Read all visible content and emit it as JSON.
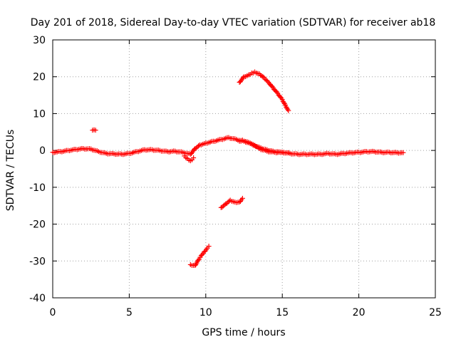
{
  "chart_data": {
    "type": "scatter",
    "title": "Day 201 of 2018, Sidereal Day-to-day VTEC variation (SDTVAR) for receiver ab18",
    "xlabel": "GPS time / hours",
    "ylabel": "SDTVAR / TECUs",
    "xlim": [
      0,
      25
    ],
    "ylim": [
      -40,
      30
    ],
    "xticks": [
      0,
      5,
      10,
      15,
      20,
      25
    ],
    "yticks": [
      -40,
      -30,
      -20,
      -10,
      0,
      10,
      20,
      30
    ],
    "xtick_labels": [
      "0",
      "5",
      "10",
      "15",
      "20",
      "25"
    ],
    "ytick_labels": [
      "-40",
      "-30",
      "-20",
      "-10",
      "0",
      "10",
      "20",
      "30"
    ],
    "grid": true,
    "marker": "plus",
    "color": "#ff0000",
    "series": [
      {
        "name": "baseline",
        "x": [
          0.0,
          0.5,
          1.0,
          1.5,
          2.0,
          2.5,
          3.0,
          3.5,
          4.0,
          4.5,
          5.0,
          5.5,
          6.0,
          6.5,
          7.0,
          7.5,
          8.0,
          8.5,
          9.0,
          9.3,
          9.6,
          10.0,
          10.5,
          11.0,
          11.5,
          12.0,
          12.5,
          13.0,
          13.5,
          14.0,
          14.5,
          15.0,
          15.5,
          16.0,
          16.5,
          17.0,
          17.5,
          18.0,
          18.5,
          19.0,
          19.5,
          20.0,
          20.5,
          21.0,
          21.5,
          22.0,
          22.5,
          22.9
        ],
        "y": [
          -0.5,
          -0.3,
          0.0,
          0.3,
          0.5,
          0.4,
          -0.3,
          -0.8,
          -0.9,
          -1.0,
          -0.8,
          -0.3,
          0.2,
          0.2,
          0.0,
          -0.3,
          -0.2,
          -0.5,
          -1.0,
          0.5,
          1.5,
          2.0,
          2.5,
          3.0,
          3.5,
          3.0,
          2.5,
          1.8,
          0.5,
          -0.2,
          -0.5,
          -0.5,
          -0.8,
          -1.0,
          -1.0,
          -1.0,
          -1.0,
          -0.8,
          -1.0,
          -0.8,
          -0.6,
          -0.5,
          -0.3,
          -0.3,
          -0.5,
          -0.5,
          -0.6,
          -0.6
        ]
      },
      {
        "name": "baseline-lower-branch",
        "x": [
          8.6,
          8.8,
          9.0,
          9.2
        ],
        "y": [
          -1.5,
          -2.2,
          -2.8,
          -2.0
        ]
      },
      {
        "name": "arc-after-12h",
        "x": [
          12.2,
          12.4,
          12.8,
          13.2,
          13.6,
          14.0,
          14.4,
          14.8,
          15.1,
          15.4
        ],
        "y": [
          2.5,
          2.8,
          2.2,
          1.4,
          0.7,
          0.2,
          -0.2,
          -0.4,
          -0.5,
          -0.6
        ]
      },
      {
        "name": "high-arc",
        "x": [
          12.2,
          12.5,
          12.8,
          13.0,
          13.2,
          13.5,
          13.8,
          14.1,
          14.4,
          14.7,
          15.0,
          15.2,
          15.4
        ],
        "y": [
          18.5,
          20.0,
          20.5,
          21.0,
          21.3,
          20.8,
          19.8,
          18.5,
          17.0,
          15.5,
          13.8,
          12.3,
          10.8
        ]
      },
      {
        "name": "isolated-point",
        "x": [
          2.6,
          2.7,
          2.8
        ],
        "y": [
          5.5,
          5.6,
          5.5
        ]
      },
      {
        "name": "mid-low-segment",
        "x": [
          11.0,
          11.3,
          11.6,
          11.9,
          12.2,
          12.4
        ],
        "y": [
          -15.5,
          -14.5,
          -13.5,
          -14.0,
          -14.0,
          -13.0
        ]
      },
      {
        "name": "deep-low-segment",
        "x": [
          9.0,
          9.3,
          9.5,
          9.7,
          9.9,
          10.1,
          10.2
        ],
        "y": [
          -31.0,
          -31.2,
          -29.8,
          -28.5,
          -27.5,
          -26.5,
          -26.0
        ]
      }
    ]
  }
}
